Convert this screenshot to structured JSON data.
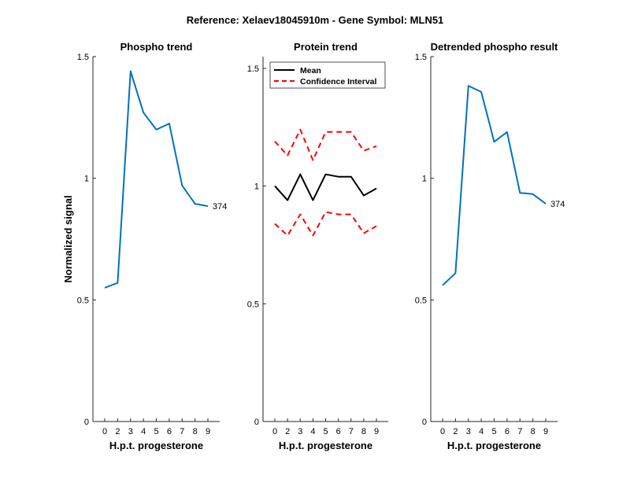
{
  "figure": {
    "title": "Reference:  Xelaev18045910m - Gene Symbol:  MLN51"
  },
  "chart_data": [
    {
      "type": "line",
      "title": "Phospho trend",
      "xlabel": "H.p.t. progesterone",
      "ylabel": "Normalized signal",
      "x_tick_labels": [
        "0",
        "2",
        "3",
        "4",
        "5",
        "6",
        "7",
        "8",
        "9"
      ],
      "ylim": [
        0,
        1.5
      ],
      "y_ticks": [
        0,
        0.5,
        1,
        1.5
      ],
      "y_tick_labels": [
        "0",
        "0.5",
        "1",
        "1.5"
      ],
      "series": [
        {
          "color": "#0072BD",
          "values": [
            0.55,
            0.57,
            1.44,
            1.27,
            1.2,
            1.225,
            0.97,
            0.895,
            0.885
          ],
          "end_label": "374"
        }
      ],
      "grid": false
    },
    {
      "type": "line",
      "title": "Protein trend",
      "xlabel": "H.p.t. progesterone",
      "ylabel": "",
      "x_tick_labels": [
        "0",
        "2",
        "3",
        "4",
        "5",
        "6",
        "7",
        "8",
        "9"
      ],
      "ylim": [
        0,
        1.55
      ],
      "y_ticks": [
        0,
        0.5,
        1,
        1.5
      ],
      "y_tick_labels": [
        "0",
        "0.5",
        "1",
        "1.5"
      ],
      "legend": {
        "placement": "top-left",
        "entries": [
          "Mean",
          "Confidence Interval"
        ]
      },
      "series": [
        {
          "name": "Mean",
          "color": "#000000",
          "style": "solid",
          "values": [
            1.0,
            0.94,
            1.05,
            0.94,
            1.05,
            1.04,
            1.04,
            0.96,
            0.99
          ]
        },
        {
          "name": "Confidence Interval",
          "color": "#FF0000",
          "style": "dashed",
          "values": [
            1.19,
            1.13,
            1.24,
            1.11,
            1.23,
            1.23,
            1.23,
            1.15,
            1.17
          ]
        },
        {
          "name": "Confidence Interval",
          "color": "#FF0000",
          "style": "dashed",
          "values": [
            0.84,
            0.79,
            0.88,
            0.79,
            0.89,
            0.88,
            0.88,
            0.8,
            0.83
          ]
        }
      ],
      "grid": false
    },
    {
      "type": "line",
      "title": "Detrended phospho result",
      "xlabel": "H.p.t. progesterone",
      "ylabel": "",
      "x_tick_labels": [
        "0",
        "2",
        "3",
        "4",
        "5",
        "6",
        "7",
        "8",
        "9"
      ],
      "ylim": [
        0,
        1.5
      ],
      "y_ticks": [
        0,
        0.5,
        1,
        1.5
      ],
      "y_tick_labels": [
        "0",
        "0.5",
        "1",
        "1.5"
      ],
      "series": [
        {
          "color": "#0072BD",
          "values": [
            0.56,
            0.61,
            1.38,
            1.355,
            1.15,
            1.19,
            0.94,
            0.935,
            0.895
          ],
          "end_label": "374"
        }
      ],
      "grid": false
    }
  ]
}
